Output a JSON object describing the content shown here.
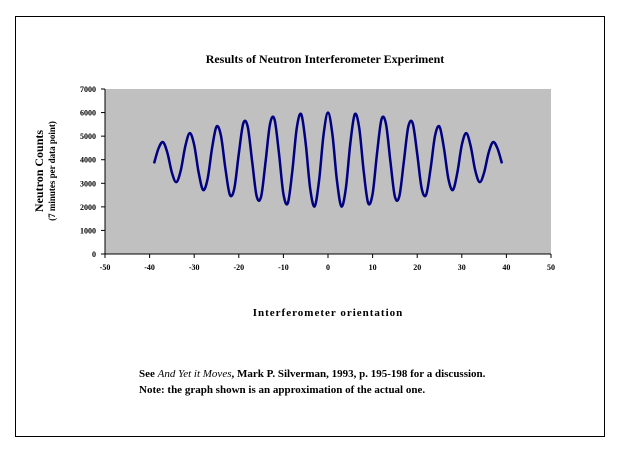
{
  "chart_data": {
    "type": "line",
    "title": "Results of Neutron Interferometer Experiment",
    "x_label": "Interferometer orientation",
    "y_label": "Neutron Counts",
    "y_sublabel": "(7 minutes per data point)",
    "x": [
      -39,
      -38,
      -37,
      -36,
      -35,
      -34,
      -33,
      -32,
      -31,
      -30,
      -29,
      -28,
      -27,
      -26,
      -25,
      -24,
      -23,
      -22,
      -21,
      -20,
      -19,
      -18,
      -17,
      -16,
      -15,
      -14,
      -13,
      -12,
      -11,
      -10,
      -9,
      -8,
      -7,
      -6,
      -5,
      -4,
      -3,
      -2,
      -1,
      0,
      1,
      2,
      3,
      4,
      5,
      6,
      7,
      8,
      9,
      10,
      11,
      12,
      13,
      14,
      15,
      16,
      17,
      18,
      19,
      20,
      21,
      22,
      23,
      24,
      25,
      26,
      27,
      28,
      29,
      30,
      31,
      32,
      33,
      34,
      35,
      36,
      37,
      38,
      39
    ],
    "series": [
      {
        "color": "#000080",
        "values": [
          3846,
          4479,
          4745,
          4285,
          3453,
          3051,
          3556,
          4570,
          5130,
          4625,
          3451,
          2716,
          3183,
          4484,
          5405,
          5015,
          3617,
          2508,
          2786,
          4251,
          5539,
          5400,
          3910,
          2453,
          2430,
          3911,
          5516,
          5717,
          4285,
          2551,
          2162,
          3515,
          5350,
          5928,
          4686,
          2783,
          2018,
          3122,
          5058,
          6000,
          5058,
          3122,
          2018,
          2783,
          4686,
          5928,
          5350,
          3515,
          2162,
          2551,
          4285,
          5717,
          5516,
          3911,
          2430,
          2453,
          3910,
          5400,
          5539,
          4251,
          2786,
          2508,
          3617,
          5015,
          5405,
          4484,
          3183,
          2716,
          3451,
          4625,
          5130,
          4570,
          3556,
          3051,
          3453,
          4285,
          4745,
          4479,
          3846
        ]
      }
    ],
    "xlim": [
      -50,
      50
    ],
    "xticks": [
      -50,
      -40,
      -30,
      -20,
      -10,
      0,
      10,
      20,
      30,
      40,
      50
    ],
    "ylim": [
      0,
      7000
    ],
    "yticks": [
      0,
      1000,
      2000,
      3000,
      4000,
      5000,
      6000,
      7000
    ],
    "plot_background": "#c0c0c0",
    "note": {
      "line1": [
        "See ",
        "And Yet it Moves",
        ", Mark P. Silverman, 1993,  p. 195-198 for a discussion."
      ],
      "line2": "Note: the graph shown is an approximation of the actual one."
    }
  }
}
